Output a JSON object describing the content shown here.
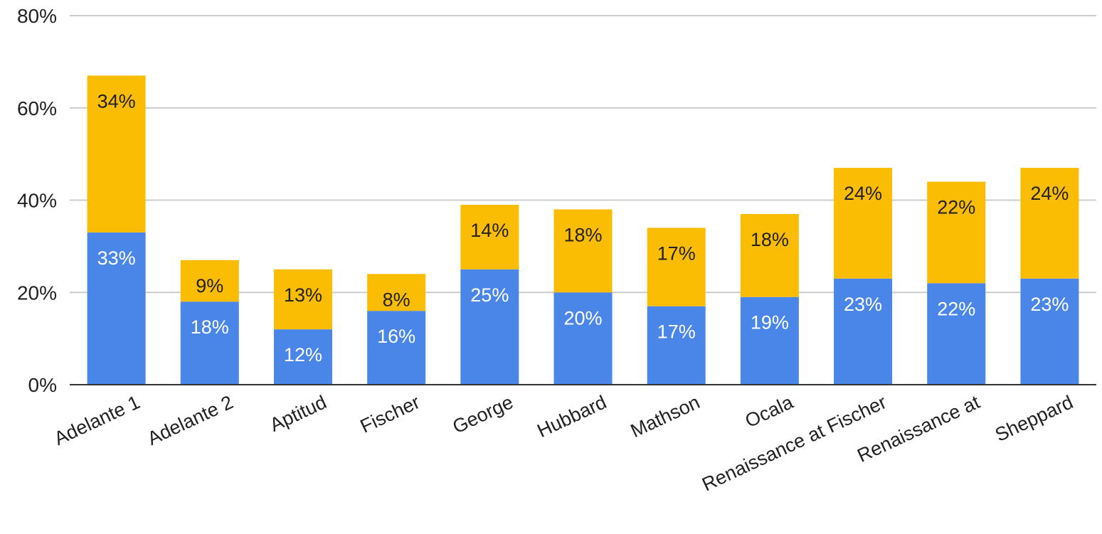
{
  "chart_data": {
    "type": "bar",
    "stacked": true,
    "categories": [
      "Adelante 1",
      "Adelante 2",
      "Aptitud",
      "Fischer",
      "George",
      "Hubbard",
      "Mathson",
      "Ocala",
      "Renaissance at Fischer",
      "Renaissance at",
      "Sheppard"
    ],
    "series": [
      {
        "values": [
          33,
          18,
          12,
          16,
          25,
          20,
          17,
          19,
          23,
          22,
          23
        ],
        "color": "#4a86e8",
        "label_color": "#ffffff"
      },
      {
        "values": [
          34,
          9,
          13,
          8,
          14,
          18,
          17,
          18,
          24,
          22,
          24
        ],
        "color": "#fbbc04",
        "label_color": "#222222"
      }
    ],
    "data_labels": [
      [
        "33%",
        "18%",
        "12%",
        "16%",
        "25%",
        "20%",
        "17%",
        "19%",
        "23%",
        "22%",
        "23%"
      ],
      [
        "34%",
        "9%",
        "13%",
        "8%",
        "14%",
        "18%",
        "17%",
        "18%",
        "24%",
        "22%",
        "24%"
      ]
    ],
    "y_ticks": [
      0,
      20,
      40,
      60,
      80
    ],
    "y_tick_labels": [
      "0%",
      "20%",
      "40%",
      "60%",
      "80%"
    ],
    "ylim": [
      0,
      80
    ],
    "grid": true,
    "legend": "none",
    "title": "",
    "xlabel": "",
    "ylabel": ""
  }
}
